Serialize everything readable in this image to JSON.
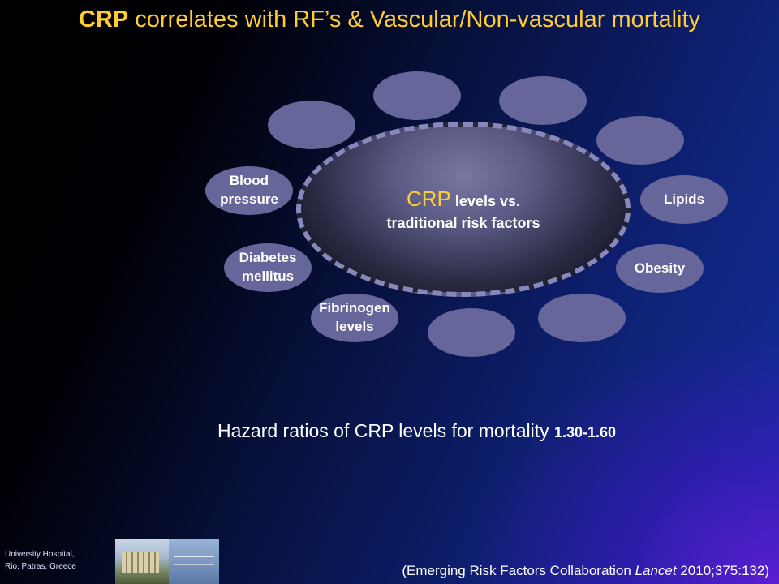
{
  "slide": {
    "title_bold": "CRP",
    "title_rest": " correlates with RF’s & Vascular/Non-vascular mortality",
    "core": {
      "crp": "CRP",
      "line1_rest": " levels vs.",
      "line2": "traditional risk factors"
    },
    "bubbles": {
      "blood_pressure_1": "Blood",
      "blood_pressure_2": "pressure",
      "lipids": "Lipids",
      "diabetes_1": "Diabetes",
      "diabetes_2": "mellitus",
      "obesity": "Obesity",
      "fibrinogen_1": "Fibrinogen",
      "fibrinogen_2": "levels"
    },
    "hazard_text": "Hazard ratios of CRP levels for mortality ",
    "hazard_value": "1.30-1.60",
    "citation_pre": "(Emerging Risk Factors Collaboration ",
    "citation_journal": "Lancet",
    "citation_post": " 2010;375:132)",
    "affiliation_1": "University Hospital,",
    "affiliation_2": "Rio, Patras, Greece"
  }
}
